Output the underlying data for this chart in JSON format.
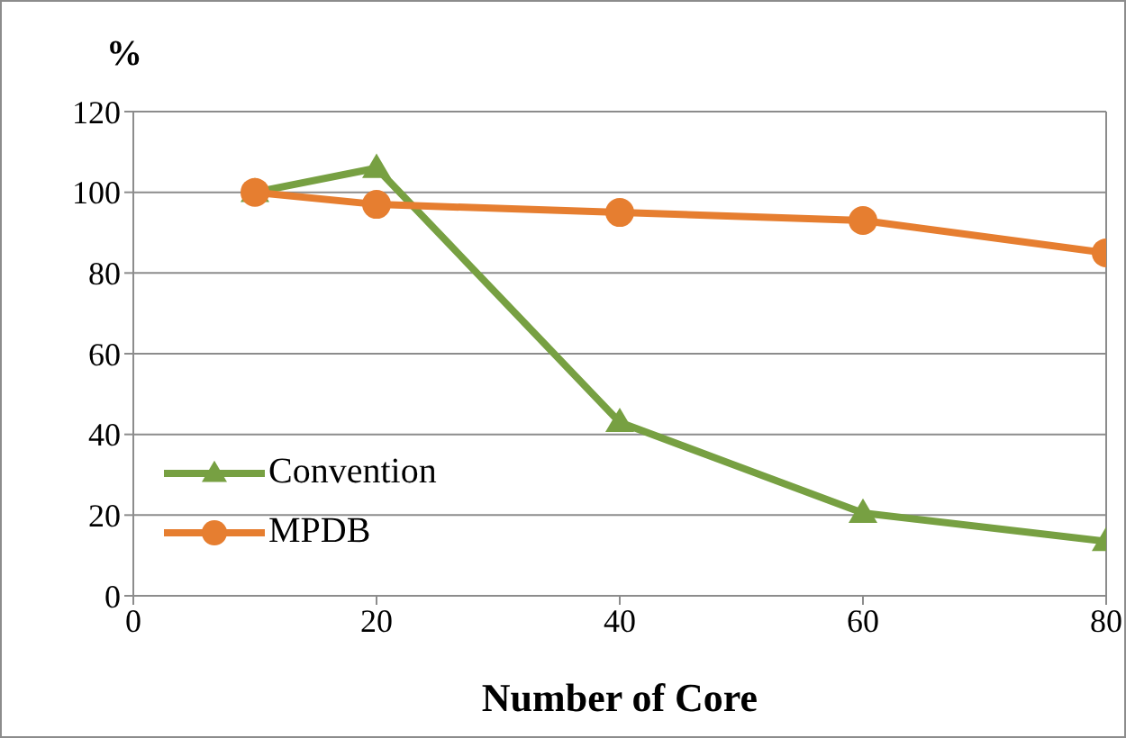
{
  "chart_data": {
    "type": "line",
    "ylabel": "%",
    "xlabel": "Number of Core",
    "xlim": [
      0,
      80
    ],
    "xticks": [
      0,
      20,
      40,
      60,
      80
    ],
    "ylim": [
      0,
      120
    ],
    "yticks": [
      0,
      20,
      40,
      60,
      80,
      100,
      120
    ],
    "grid": "y",
    "legend": "bottom left",
    "series": [
      {
        "name": "Convention",
        "color": "#77a042",
        "marker": "triangle",
        "x": [
          10,
          20,
          40,
          60,
          80
        ],
        "values": [
          100,
          106,
          43,
          20.5,
          13.5
        ]
      },
      {
        "name": "MPDB",
        "color": "#e67e30",
        "marker": "circle",
        "x": [
          10,
          20,
          40,
          60,
          80
        ],
        "values": [
          100,
          97,
          95,
          93,
          85
        ]
      }
    ]
  }
}
